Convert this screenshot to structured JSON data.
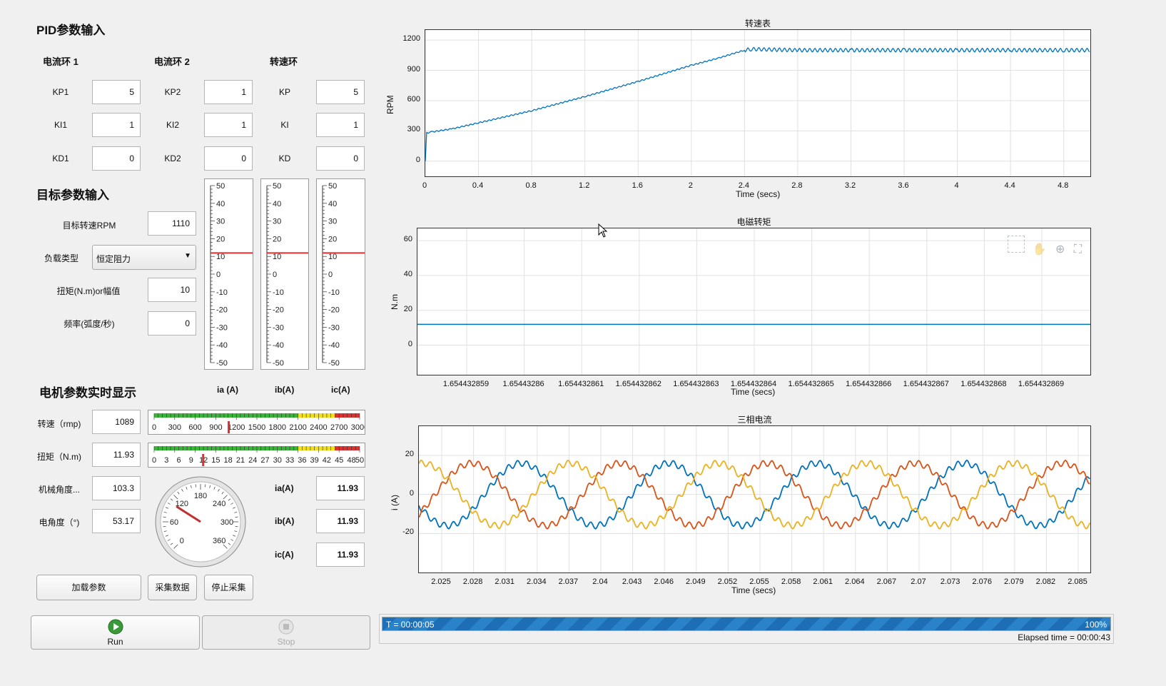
{
  "pid": {
    "title": "PID参数输入",
    "loop1": {
      "title": "电流环 1",
      "kp_label": "KP1",
      "ki_label": "KI1",
      "kd_label": "KD1",
      "kp": "5",
      "ki": "1",
      "kd": "0"
    },
    "loop2": {
      "title": "电流环 2",
      "kp_label": "KP2",
      "ki_label": "KI2",
      "kd_label": "KD2",
      "kp": "1",
      "ki": "1",
      "kd": "0"
    },
    "loop3": {
      "title": "转速环",
      "kp_label": "KP",
      "ki_label": "KI",
      "kd_label": "KD",
      "kp": "5",
      "ki": "1",
      "kd": "0"
    }
  },
  "target": {
    "title": "目标参数输入",
    "rpm_label": "目标转速RPM",
    "rpm_value": "1110",
    "load_label": "负载类型",
    "load_value": "恒定阻力",
    "torque_label": "扭矩(N.m)or幅值",
    "torque_value": "10",
    "freq_label": "频率(弧度/秒)",
    "freq_value": "0"
  },
  "vertical_gauges": {
    "ticks": [
      "50",
      "40",
      "30",
      "20",
      "10",
      "0",
      "-10",
      "-20",
      "-30",
      "-40",
      "-50"
    ],
    "min": -50,
    "max": 50,
    "values": [
      11.93,
      11.93,
      11.93
    ],
    "headers": [
      "ia  (A)",
      "ib(A)",
      "ic(A)"
    ]
  },
  "realtime": {
    "title": "电机参数实时显示",
    "speed_label": "转速（rmp)",
    "speed_value": "1089",
    "torque_label": "扭矩（N.m)",
    "torque_value": "11.93",
    "mech_angle_label": "机械角度...",
    "mech_angle_value": "103.3",
    "elec_angle_label": "电角度（°)",
    "elec_angle_value": "53.17",
    "ia_label": "ia(A)",
    "ia_value": "11.93",
    "ib_label": "ib(A)",
    "ib_value": "11.93",
    "ic_label": "ic(A)",
    "ic_value": "11.93"
  },
  "linear_gauges": {
    "speed": {
      "ticks": [
        "0",
        "300",
        "600",
        "900",
        "1200",
        "1500",
        "1800",
        "2100",
        "2400",
        "2700",
        "3000"
      ],
      "max": 3000,
      "value": 1089
    },
    "torque": {
      "ticks": [
        "0",
        "3",
        "6",
        "9",
        "12",
        "15",
        "18",
        "21",
        "24",
        "27",
        "30",
        "33",
        "36",
        "39",
        "42",
        "45",
        "48",
        "50"
      ],
      "max": 50,
      "value": 11.93
    }
  },
  "circular_gauge": {
    "ticks": [
      "0",
      "60",
      "120",
      "180",
      "240",
      "300",
      "360"
    ],
    "max": 360,
    "value": 103.3
  },
  "buttons": {
    "load": "加载参数",
    "collect": "采集数据",
    "stop_collect": "停止采集",
    "run": "Run",
    "stop": "Stop"
  },
  "status": {
    "time_label": "T = 00:00:05",
    "percent": "100%",
    "progress": 1.0,
    "elapsed": "Elapsed time = 00:00:43"
  },
  "colors": {
    "blue": "#0072bd",
    "orange": "#d95319",
    "yellow": "#edb120",
    "gauge_red": "#e03030",
    "gauge_green": "#3cb43c",
    "gauge_yellow": "#f0e020"
  },
  "chart_data": [
    {
      "type": "line",
      "title": "转速表",
      "xlabel": "Time (secs)",
      "ylabel": "RPM",
      "xlim": [
        0,
        5.0
      ],
      "ylim": [
        -150,
        1300
      ],
      "xticks": [
        "0",
        "0.4",
        "0.8",
        "1.2",
        "1.6",
        "2",
        "2.4",
        "2.8",
        "3.2",
        "3.6",
        "4",
        "4.4",
        "4.8"
      ],
      "yticks": [
        "0",
        "300",
        "600",
        "900",
        "1200"
      ],
      "series": [
        {
          "x": [
            0,
            0.01,
            0.05,
            0.2,
            0.4,
            0.8,
            1.2,
            1.6,
            2.0,
            2.2,
            2.4,
            2.45,
            2.8,
            3.2,
            3.6,
            4.0,
            4.4,
            4.8,
            5.0
          ],
          "y": [
            0,
            280,
            290,
            320,
            380,
            500,
            640,
            790,
            950,
            1020,
            1100,
            1110,
            1100,
            1100,
            1100,
            1100,
            1100,
            1100,
            1100
          ]
        }
      ],
      "grid": true
    },
    {
      "type": "line",
      "title": "电磁转矩",
      "xlabel": "Time (secs)",
      "ylabel": "N.m",
      "ylim": [
        -17,
        67
      ],
      "xticks": [
        "1.654432859",
        "1.65443286",
        "1.654432861",
        "1.654432862",
        "1.654432863",
        "1.654432864",
        "1.654432865",
        "1.654432866",
        "1.654432867",
        "1.654432868",
        "1.654432869"
      ],
      "yticks": [
        "0",
        "20",
        "40",
        "60"
      ],
      "series": [
        {
          "y": 11.93
        }
      ],
      "grid": true
    },
    {
      "type": "line",
      "title": "三相电流",
      "xlabel": "Time (secs)",
      "ylabel": "i  (A)",
      "ylim": [
        -40,
        35
      ],
      "xticks": [
        "2.025",
        "2.028",
        "2.031",
        "2.034",
        "2.037",
        "2.04",
        "2.043",
        "2.046",
        "2.049",
        "2.052",
        "2.055",
        "2.058",
        "2.061",
        "2.064",
        "2.067",
        "2.07",
        "2.073",
        "2.076",
        "2.079",
        "2.082",
        "2.085"
      ],
      "yticks": [
        "-20",
        "0",
        "20"
      ],
      "series": [
        {
          "color": "#0072bd",
          "amplitude": 16,
          "phase_deg": 0
        },
        {
          "color": "#d95319",
          "amplitude": 16,
          "phase_deg": 120
        },
        {
          "color": "#edb120",
          "amplitude": 16,
          "phase_deg": 240
        }
      ],
      "grid": true
    }
  ]
}
